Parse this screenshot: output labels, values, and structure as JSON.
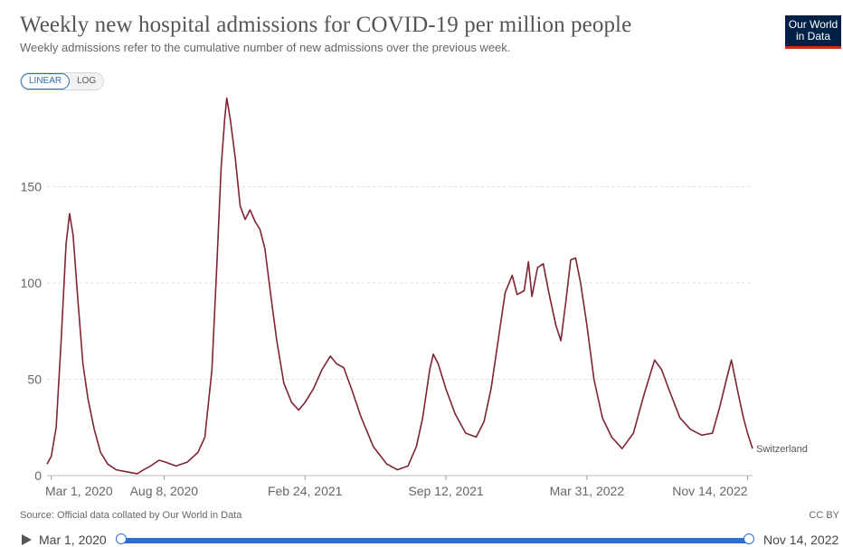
{
  "header": {
    "title": "Weekly new hospital admissions for COVID-19 per million people",
    "subtitle": "Weekly admissions refer to the cumulative number of new admissions over the previous week.",
    "logo_line1": "Our World",
    "logo_line2": "in Data"
  },
  "scale_toggle": {
    "linear_label": "LINEAR",
    "log_label": "LOG",
    "selected": "linear"
  },
  "footer": {
    "source": "Source: Official data collated by Our World in Data",
    "license": "CC BY"
  },
  "timeline": {
    "start_label": "Mar 1, 2020",
    "end_label": "Nov 14, 2022",
    "play_icon": "play-icon"
  },
  "colors": {
    "series": "#7f2432",
    "grid": "#dddddd",
    "accent": "#2b6fd0"
  },
  "chart_data": {
    "type": "line",
    "title": "Weekly new hospital admissions for COVID-19 per million people",
    "xlabel": "",
    "ylabel": "",
    "x_range": [
      "2020-02-24",
      "2022-11-21"
    ],
    "ylim": [
      0,
      200
    ],
    "y_ticks": [
      0,
      50,
      100,
      150
    ],
    "x_ticks": [
      "2020-03-01",
      "2020-08-08",
      "2021-02-24",
      "2021-09-12",
      "2022-03-31",
      "2022-11-14"
    ],
    "x_tick_labels": [
      "Mar 1, 2020",
      "Aug 8, 2020",
      "Feb 24, 2021",
      "Sep 12, 2021",
      "Mar 31, 2022",
      "Nov 14, 2022"
    ],
    "grid": "horizontal dashed",
    "legend": "end-of-line label",
    "series": [
      {
        "name": "Switzerland",
        "points": [
          [
            "2020-02-24",
            6
          ],
          [
            "2020-03-01",
            10
          ],
          [
            "2020-03-08",
            25
          ],
          [
            "2020-03-15",
            70
          ],
          [
            "2020-03-22",
            120
          ],
          [
            "2020-03-27",
            136
          ],
          [
            "2020-04-01",
            125
          ],
          [
            "2020-04-08",
            90
          ],
          [
            "2020-04-15",
            58
          ],
          [
            "2020-04-22",
            40
          ],
          [
            "2020-05-01",
            24
          ],
          [
            "2020-05-10",
            12
          ],
          [
            "2020-05-20",
            6
          ],
          [
            "2020-06-01",
            3
          ],
          [
            "2020-06-15",
            2
          ],
          [
            "2020-07-01",
            1
          ],
          [
            "2020-07-10",
            3
          ],
          [
            "2020-07-20",
            5
          ],
          [
            "2020-08-01",
            8
          ],
          [
            "2020-08-10",
            7
          ],
          [
            "2020-08-25",
            5
          ],
          [
            "2020-09-10",
            7
          ],
          [
            "2020-09-25",
            12
          ],
          [
            "2020-10-05",
            20
          ],
          [
            "2020-10-15",
            55
          ],
          [
            "2020-10-22",
            110
          ],
          [
            "2020-10-28",
            160
          ],
          [
            "2020-11-02",
            185
          ],
          [
            "2020-11-05",
            196
          ],
          [
            "2020-11-10",
            185
          ],
          [
            "2020-11-17",
            165
          ],
          [
            "2020-11-24",
            140
          ],
          [
            "2020-12-01",
            133
          ],
          [
            "2020-12-08",
            138
          ],
          [
            "2020-12-15",
            132
          ],
          [
            "2020-12-22",
            128
          ],
          [
            "2020-12-29",
            118
          ],
          [
            "2021-01-06",
            95
          ],
          [
            "2021-01-15",
            70
          ],
          [
            "2021-01-25",
            48
          ],
          [
            "2021-02-05",
            38
          ],
          [
            "2021-02-15",
            34
          ],
          [
            "2021-02-24",
            38
          ],
          [
            "2021-03-08",
            45
          ],
          [
            "2021-03-20",
            55
          ],
          [
            "2021-04-01",
            62
          ],
          [
            "2021-04-10",
            58
          ],
          [
            "2021-04-20",
            56
          ],
          [
            "2021-05-01",
            45
          ],
          [
            "2021-05-15",
            30
          ],
          [
            "2021-06-01",
            15
          ],
          [
            "2021-06-20",
            6
          ],
          [
            "2021-07-05",
            3
          ],
          [
            "2021-07-20",
            5
          ],
          [
            "2021-08-01",
            15
          ],
          [
            "2021-08-10",
            30
          ],
          [
            "2021-08-20",
            55
          ],
          [
            "2021-08-25",
            63
          ],
          [
            "2021-09-01",
            58
          ],
          [
            "2021-09-12",
            45
          ],
          [
            "2021-09-25",
            32
          ],
          [
            "2021-10-10",
            22
          ],
          [
            "2021-10-25",
            20
          ],
          [
            "2021-11-05",
            28
          ],
          [
            "2021-11-15",
            45
          ],
          [
            "2021-11-25",
            70
          ],
          [
            "2021-12-05",
            95
          ],
          [
            "2021-12-15",
            104
          ],
          [
            "2021-12-22",
            94
          ],
          [
            "2022-01-01",
            96
          ],
          [
            "2022-01-07",
            111
          ],
          [
            "2022-01-12",
            93
          ],
          [
            "2022-01-20",
            108
          ],
          [
            "2022-01-28",
            110
          ],
          [
            "2022-02-05",
            95
          ],
          [
            "2022-02-15",
            78
          ],
          [
            "2022-02-22",
            70
          ],
          [
            "2022-03-01",
            90
          ],
          [
            "2022-03-08",
            112
          ],
          [
            "2022-03-15",
            113
          ],
          [
            "2022-03-22",
            100
          ],
          [
            "2022-03-31",
            78
          ],
          [
            "2022-04-10",
            50
          ],
          [
            "2022-04-22",
            30
          ],
          [
            "2022-05-05",
            20
          ],
          [
            "2022-05-20",
            14
          ],
          [
            "2022-06-05",
            22
          ],
          [
            "2022-06-20",
            42
          ],
          [
            "2022-07-05",
            60
          ],
          [
            "2022-07-15",
            55
          ],
          [
            "2022-07-25",
            45
          ],
          [
            "2022-08-10",
            30
          ],
          [
            "2022-08-25",
            24
          ],
          [
            "2022-09-10",
            21
          ],
          [
            "2022-09-25",
            22
          ],
          [
            "2022-10-05",
            35
          ],
          [
            "2022-10-15",
            50
          ],
          [
            "2022-10-22",
            60
          ],
          [
            "2022-11-01",
            42
          ],
          [
            "2022-11-08",
            30
          ],
          [
            "2022-11-14",
            22
          ],
          [
            "2022-11-21",
            14
          ]
        ]
      }
    ]
  }
}
